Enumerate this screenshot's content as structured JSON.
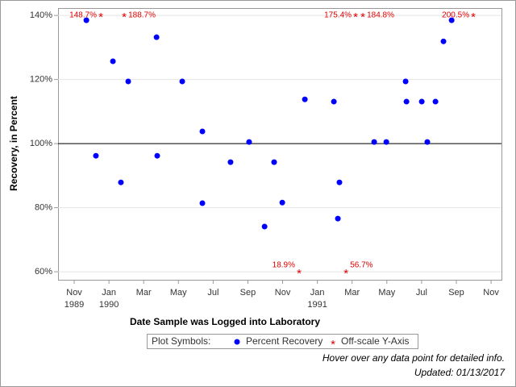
{
  "chart_data": {
    "type": "scatter",
    "xlabel": "Date Sample was Logged into Laboratory",
    "ylabel": "Recovery, in Percent",
    "xlim": [
      -0.93,
      24.6
    ],
    "ylim": [
      57.5,
      142.3
    ],
    "xticks": [
      {
        "value": 0,
        "label": "Nov 1989"
      },
      {
        "value": 2,
        "label": "Jan 1990"
      },
      {
        "value": 4,
        "label": "Mar"
      },
      {
        "value": 6,
        "label": "May"
      },
      {
        "value": 8,
        "label": "Jul"
      },
      {
        "value": 10,
        "label": "Sep"
      },
      {
        "value": 12,
        "label": "Nov"
      },
      {
        "value": 14,
        "label": "Jan 1991"
      },
      {
        "value": 16,
        "label": "Mar"
      },
      {
        "value": 18,
        "label": "May"
      },
      {
        "value": 20,
        "label": "Jul"
      },
      {
        "value": 22,
        "label": "Sep"
      },
      {
        "value": 24,
        "label": "Nov"
      }
    ],
    "yticks": [
      {
        "value": 60,
        "label": "60%"
      },
      {
        "value": 80,
        "label": "80%"
      },
      {
        "value": 100,
        "label": "100%"
      },
      {
        "value": 120,
        "label": "120%"
      },
      {
        "value": 140,
        "label": "140%"
      }
    ],
    "grid": true,
    "reference_line": 100,
    "legend_title": "Plot Symbols:",
    "series": [
      {
        "name": "Percent Recovery",
        "color": "#0000ff",
        "x": [
          0.7,
          1.25,
          2.23,
          2.69,
          3.11,
          4.74,
          4.78,
          6.22,
          7.38,
          7.38,
          9.0,
          10.07,
          10.96,
          11.51,
          11.98,
          13.28,
          14.95,
          15.18,
          15.27,
          17.27,
          17.97,
          19.08,
          19.13,
          20.01,
          20.33,
          20.8,
          21.26,
          21.73
        ],
        "values": [
          138.5,
          96.2,
          125.7,
          87.9,
          119.4,
          133.2,
          96.2,
          119.4,
          103.8,
          81.4,
          94.2,
          100.5,
          74.1,
          94.2,
          81.6,
          113.8,
          113.1,
          76.6,
          87.9,
          100.5,
          100.5,
          119.4,
          113.1,
          113.1,
          100.5,
          113.1,
          131.9,
          138.5
        ]
      },
      {
        "name": "Off-scale Y-Axis",
        "color": "#e00000",
        "x": [
          1.53,
          2.88,
          16.2,
          16.62,
          22.98,
          12.95,
          15.65
        ],
        "values": [
          148.7,
          188.7,
          175.4,
          184.8,
          200.5,
          18.9,
          56.7
        ],
        "value_labels": [
          "148.7%",
          "188.7%",
          "175.4%",
          "184.8%",
          "200.5%",
          "18.9%",
          "56.7%"
        ]
      }
    ],
    "footnotes": [
      "Hover over any data point for detailed info.",
      "Updated: 01/13/2017"
    ]
  }
}
